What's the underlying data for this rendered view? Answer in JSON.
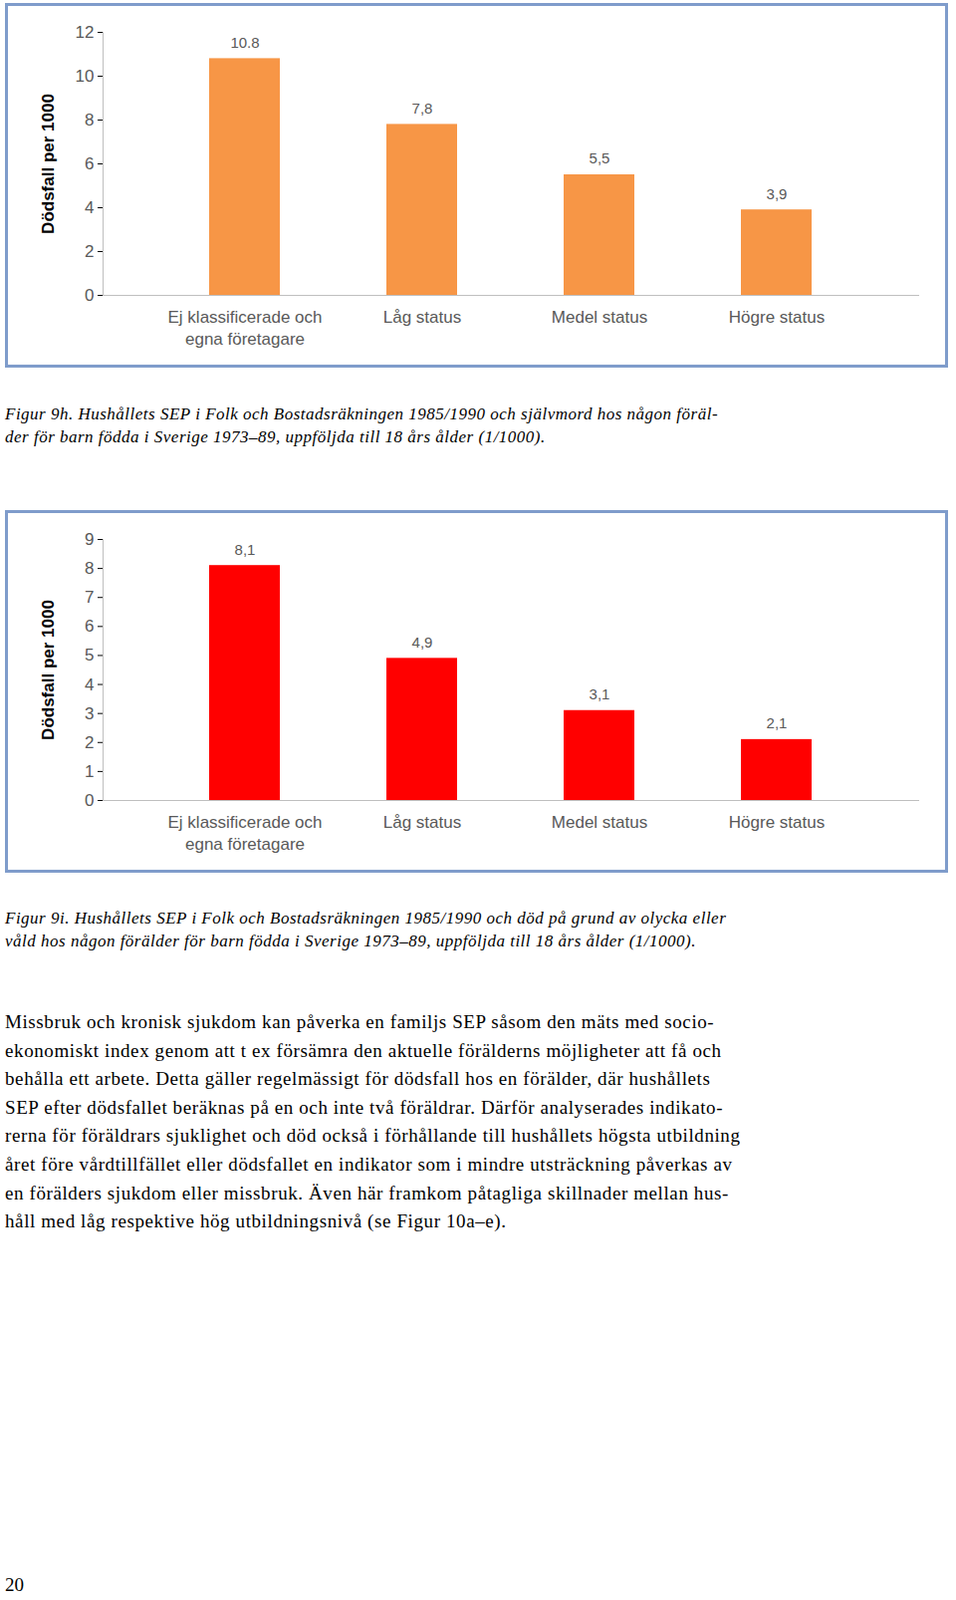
{
  "chart_data": [
    {
      "type": "bar",
      "y_label": "Dödsfall per 1000",
      "categories": [
        "Ej klassificerade och\negna företagare",
        "Låg status",
        "Medel status",
        "Högre status"
      ],
      "values": [
        10.8,
        7.8,
        5.5,
        3.9
      ],
      "value_labels": [
        "10.8",
        "7,8",
        "5,5",
        "3,9"
      ],
      "data_labels": true,
      "color": "#f79646",
      "ylim": [
        0,
        12
      ],
      "yticks": [
        0,
        2,
        4,
        6,
        8,
        10,
        12
      ],
      "grid": false,
      "caption": [
        "Figur 9h. Hushållets SEP i Folk och Bostadsräkningen 1985/1990 och självmord hos någon föräl-",
        "der för barn födda i Sverige 1973–89, uppföljda till 18 års ålder (1/1000)."
      ]
    },
    {
      "type": "bar",
      "y_label": "Dödsfall per 1000",
      "categories": [
        "Ej klassificerade och\negna företagare",
        "Låg status",
        "Medel status",
        "Högre status"
      ],
      "values": [
        8.1,
        4.9,
        3.1,
        2.1
      ],
      "value_labels": [
        "8,1",
        "4,9",
        "3,1",
        "2,1"
      ],
      "data_labels": true,
      "color": "#ff0000",
      "ylim": [
        0,
        9
      ],
      "yticks": [
        0,
        1,
        2,
        3,
        4,
        5,
        6,
        7,
        8,
        9
      ],
      "grid": false,
      "caption": [
        "Figur 9i. Hushållets SEP i Folk och Bostadsräkningen 1985/1990 och död på grund av olycka eller",
        "våld hos någon förälder för barn födda i Sverige 1973–89, uppföljda till 18 års ålder (1/1000)."
      ]
    }
  ],
  "document": {
    "paragraph": [
      "Missbruk och kronisk sjukdom kan påverka en familjs SEP såsom den mäts med socio-",
      "ekonomiskt index genom att t ex försämra den aktuelle förälderns möjligheter att få och",
      "behålla ett arbete. Detta gäller regelmässigt för dödsfall hos en förälder, där hushållets",
      "SEP efter dödsfallet beräknas på en och inte två föräldrar. Därför analyserades indikato-",
      "rerna för föräldrars sjuklighet och död också i förhållande till hushållets högsta utbildning",
      "året före vårdtillfället eller dödsfallet en indikator som i mindre utsträckning påverkas av",
      "en förälders sjukdom eller missbruk. Även här framkom påtagliga skillnader mellan hus-",
      "håll med låg respektive hög utbildningsnivå (se Figur 10a–e)."
    ],
    "page_number": "20"
  }
}
